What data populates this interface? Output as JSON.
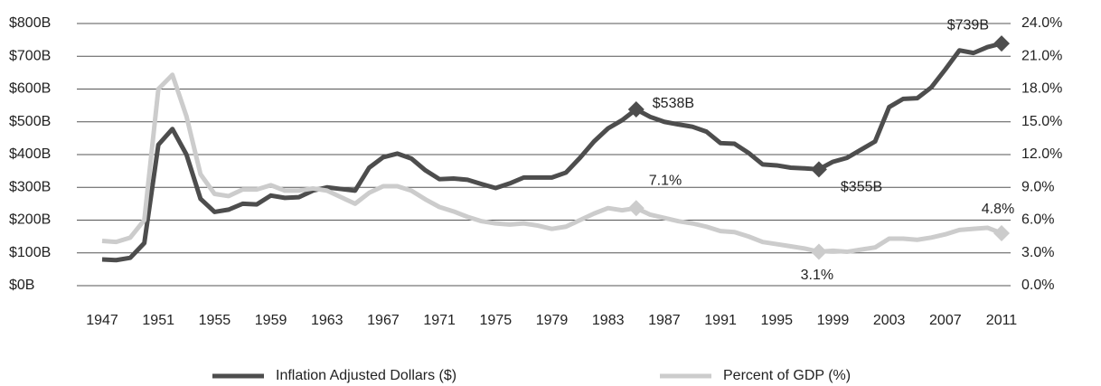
{
  "chart_data": {
    "type": "line",
    "x": [
      1947,
      1948,
      1949,
      1950,
      1951,
      1952,
      1953,
      1954,
      1955,
      1956,
      1957,
      1958,
      1959,
      1960,
      1961,
      1962,
      1963,
      1964,
      1965,
      1966,
      1967,
      1968,
      1969,
      1970,
      1971,
      1972,
      1973,
      1974,
      1975,
      1976,
      1977,
      1978,
      1979,
      1980,
      1981,
      1982,
      1983,
      1984,
      1985,
      1986,
      1987,
      1988,
      1989,
      1990,
      1991,
      1992,
      1993,
      1994,
      1995,
      1996,
      1997,
      1998,
      1999,
      2000,
      2001,
      2002,
      2003,
      2004,
      2005,
      2006,
      2007,
      2008,
      2009,
      2010,
      2011
    ],
    "xlim": [
      1947,
      2011
    ],
    "xticks": [
      1947,
      1951,
      1955,
      1959,
      1963,
      1967,
      1971,
      1975,
      1979,
      1983,
      1987,
      1991,
      1995,
      1999,
      2003,
      2007,
      2011
    ],
    "ylim": [
      0,
      800
    ],
    "yticks": [
      {
        "value": 0,
        "label": "$0B"
      },
      {
        "value": 100,
        "label": "$100B"
      },
      {
        "value": 200,
        "label": "$200B"
      },
      {
        "value": 300,
        "label": "$300B"
      },
      {
        "value": 400,
        "label": "$400B"
      },
      {
        "value": 500,
        "label": "$500B"
      },
      {
        "value": 600,
        "label": "$600B"
      },
      {
        "value": 700,
        "label": "$700B"
      },
      {
        "value": 800,
        "label": "$800B"
      }
    ],
    "y2lim": [
      0,
      24
    ],
    "y2ticks": [
      {
        "value": 0,
        "label": "0.0%"
      },
      {
        "value": 3,
        "label": "3.0%"
      },
      {
        "value": 6,
        "label": "6.0%"
      },
      {
        "value": 9,
        "label": "9.0%"
      },
      {
        "value": 12,
        "label": "12.0%"
      },
      {
        "value": 15,
        "label": "15.0%"
      },
      {
        "value": 18,
        "label": "18.0%"
      },
      {
        "value": 21,
        "label": "21.0%"
      },
      {
        "value": 24,
        "label": "24.0%"
      }
    ],
    "grid": true,
    "legend": "bottom",
    "series": [
      {
        "name": "Inflation Adjusted Dollars ($)",
        "color": "#4d4d4d",
        "axis": "y",
        "values": [
          80,
          78,
          85,
          130,
          430,
          478,
          400,
          265,
          225,
          232,
          250,
          248,
          275,
          268,
          270,
          290,
          300,
          295,
          290,
          360,
          392,
          403,
          388,
          352,
          325,
          327,
          323,
          310,
          298,
          312,
          330,
          330,
          330,
          345,
          390,
          440,
          480,
          505,
          538,
          515,
          500,
          492,
          485,
          470,
          435,
          433,
          405,
          370,
          367,
          360,
          358,
          355,
          378,
          390,
          415,
          440,
          545,
          570,
          572,
          605,
          660,
          718,
          710,
          728,
          739
        ],
        "value_labels": [
          null,
          null,
          null,
          null,
          null,
          null,
          null,
          null,
          null,
          null,
          null,
          null,
          null,
          null,
          null,
          null,
          null,
          null,
          null,
          null,
          null,
          null,
          null,
          null,
          null,
          null,
          null,
          null,
          null,
          null,
          null,
          null,
          null,
          null,
          null,
          null,
          null,
          null,
          "$538B",
          null,
          null,
          null,
          null,
          null,
          null,
          null,
          null,
          null,
          null,
          null,
          null,
          "$355B",
          null,
          null,
          null,
          null,
          null,
          null,
          null,
          null,
          null,
          null,
          null,
          null,
          "$739B"
        ]
      },
      {
        "name": "Percent of GDP (%)",
        "color": "#cccccc",
        "axis": "y2",
        "values": [
          4.1,
          4.0,
          4.4,
          6.0,
          18.0,
          19.3,
          15.5,
          10.2,
          8.4,
          8.2,
          8.8,
          8.8,
          9.2,
          8.7,
          8.7,
          8.9,
          8.7,
          8.1,
          7.5,
          8.5,
          9.1,
          9.1,
          8.7,
          7.9,
          7.2,
          6.8,
          6.3,
          5.9,
          5.7,
          5.6,
          5.7,
          5.5,
          5.2,
          5.4,
          6.0,
          6.6,
          7.1,
          6.9,
          7.1,
          6.5,
          6.2,
          5.9,
          5.7,
          5.4,
          5.0,
          4.9,
          4.5,
          4.0,
          3.8,
          3.6,
          3.4,
          3.1,
          3.2,
          3.1,
          3.3,
          3.5,
          4.3,
          4.3,
          4.2,
          4.4,
          4.7,
          5.1,
          5.2,
          5.3,
          4.8
        ],
        "value_labels": [
          null,
          null,
          null,
          null,
          null,
          null,
          null,
          null,
          null,
          null,
          null,
          null,
          null,
          null,
          null,
          null,
          null,
          null,
          null,
          null,
          null,
          null,
          null,
          null,
          null,
          null,
          null,
          null,
          null,
          null,
          null,
          null,
          null,
          null,
          null,
          null,
          null,
          null,
          "7.1%",
          null,
          null,
          null,
          null,
          null,
          null,
          null,
          null,
          null,
          null,
          null,
          null,
          "3.1%",
          null,
          null,
          null,
          null,
          null,
          null,
          null,
          null,
          null,
          null,
          null,
          null,
          "4.8%"
        ]
      }
    ]
  }
}
